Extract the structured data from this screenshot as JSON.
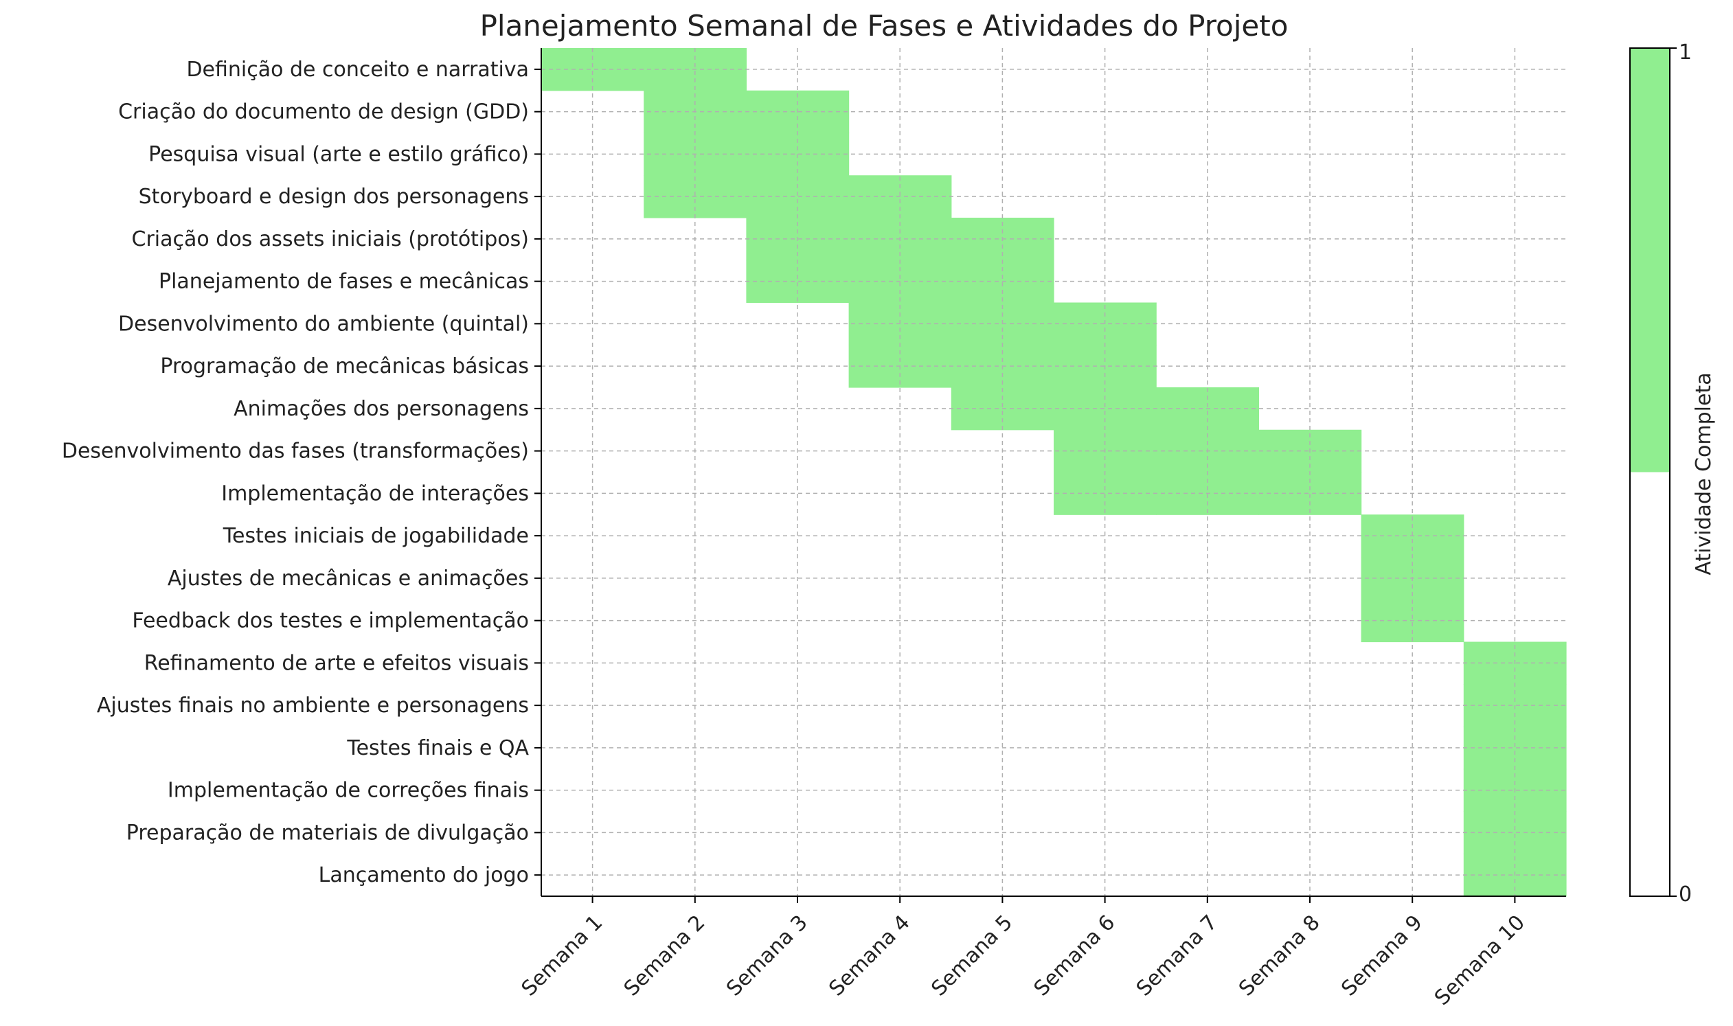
{
  "chart_data": {
    "type": "heatmap",
    "title": "Planejamento Semanal de Fases e Atividades do Projeto",
    "xlabel": "",
    "ylabel": "",
    "categories": [
      "Semana 1",
      "Semana 2",
      "Semana 3",
      "Semana 4",
      "Semana 5",
      "Semana 6",
      "Semana 7",
      "Semana 8",
      "Semana 9",
      "Semana 10"
    ],
    "activities": [
      {
        "name": "Definição de conceito e narrativa",
        "weeks": [
          1,
          1,
          0,
          0,
          0,
          0,
          0,
          0,
          0,
          0
        ]
      },
      {
        "name": "Criação do documento de design (GDD)",
        "weeks": [
          0,
          1,
          1,
          0,
          0,
          0,
          0,
          0,
          0,
          0
        ]
      },
      {
        "name": "Pesquisa visual (arte e estilo gráfico)",
        "weeks": [
          0,
          1,
          1,
          0,
          0,
          0,
          0,
          0,
          0,
          0
        ]
      },
      {
        "name": "Storyboard e design dos personagens",
        "weeks": [
          0,
          1,
          1,
          1,
          0,
          0,
          0,
          0,
          0,
          0
        ]
      },
      {
        "name": "Criação dos assets iniciais (protótipos)",
        "weeks": [
          0,
          0,
          1,
          1,
          1,
          0,
          0,
          0,
          0,
          0
        ]
      },
      {
        "name": "Planejamento de fases e mecânicas",
        "weeks": [
          0,
          0,
          1,
          1,
          1,
          0,
          0,
          0,
          0,
          0
        ]
      },
      {
        "name": "Desenvolvimento do ambiente (quintal)",
        "weeks": [
          0,
          0,
          0,
          1,
          1,
          1,
          0,
          0,
          0,
          0
        ]
      },
      {
        "name": "Programação de mecânicas básicas",
        "weeks": [
          0,
          0,
          0,
          1,
          1,
          1,
          0,
          0,
          0,
          0
        ]
      },
      {
        "name": "Animações dos personagens",
        "weeks": [
          0,
          0,
          0,
          0,
          1,
          1,
          1,
          0,
          0,
          0
        ]
      },
      {
        "name": "Desenvolvimento das fases (transformações)",
        "weeks": [
          0,
          0,
          0,
          0,
          0,
          1,
          1,
          1,
          0,
          0
        ]
      },
      {
        "name": "Implementação de interações",
        "weeks": [
          0,
          0,
          0,
          0,
          0,
          1,
          1,
          1,
          0,
          0
        ]
      },
      {
        "name": "Testes iniciais de jogabilidade",
        "weeks": [
          0,
          0,
          0,
          0,
          0,
          0,
          0,
          0,
          1,
          0
        ]
      },
      {
        "name": "Ajustes de mecânicas e animações",
        "weeks": [
          0,
          0,
          0,
          0,
          0,
          0,
          0,
          0,
          1,
          0
        ]
      },
      {
        "name": "Feedback dos testes e implementação",
        "weeks": [
          0,
          0,
          0,
          0,
          0,
          0,
          0,
          0,
          1,
          0
        ]
      },
      {
        "name": "Refinamento de arte e efeitos visuais",
        "weeks": [
          0,
          0,
          0,
          0,
          0,
          0,
          0,
          0,
          0,
          1
        ]
      },
      {
        "name": "Ajustes finais no ambiente e personagens",
        "weeks": [
          0,
          0,
          0,
          0,
          0,
          0,
          0,
          0,
          0,
          1
        ]
      },
      {
        "name": "Testes finais e QA",
        "weeks": [
          0,
          0,
          0,
          0,
          0,
          0,
          0,
          0,
          0,
          1
        ]
      },
      {
        "name": "Implementação de correções finais",
        "weeks": [
          0,
          0,
          0,
          0,
          0,
          0,
          0,
          0,
          0,
          1
        ]
      },
      {
        "name": "Preparação de materiais de divulgação",
        "weeks": [
          0,
          0,
          0,
          0,
          0,
          0,
          0,
          0,
          0,
          1
        ]
      },
      {
        "name": "Lançamento do jogo",
        "weeks": [
          0,
          0,
          0,
          0,
          0,
          0,
          0,
          0,
          0,
          1
        ]
      }
    ],
    "colorbar": {
      "label": "Atividade Completa",
      "min_label": "0",
      "max_label": "1",
      "range": [
        0,
        1
      ],
      "colors": [
        "#ffffff",
        "#90ee90"
      ]
    },
    "active_color": "#90ee90",
    "grid": true,
    "grid_style": "dashed"
  }
}
